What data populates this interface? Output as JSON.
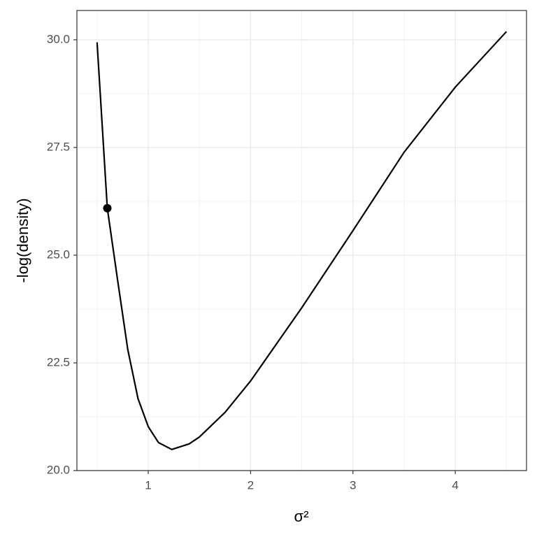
{
  "chart_data": {
    "type": "line",
    "x_label": "σ²",
    "y_label": "-log(density)",
    "xlim": [
      0.303,
      4.696
    ],
    "ylim": [
      20,
      30.68
    ],
    "xticks": [
      1,
      2,
      3,
      4
    ],
    "yticks": [
      {
        "value": 20,
        "label": "20.0"
      },
      {
        "value": 22.5,
        "label": "22.5"
      },
      {
        "value": 25,
        "label": "25.0"
      },
      {
        "value": 27.5,
        "label": "27.5"
      },
      {
        "value": 30,
        "label": "30.0"
      }
    ],
    "grid": true,
    "series": [
      {
        "color": "#000000",
        "marker": false,
        "x": [
          0.5,
          0.6,
          0.7,
          0.8,
          0.9,
          1.0,
          1.1,
          1.23,
          1.4,
          1.5,
          1.75,
          2.0,
          2.5,
          3.0,
          3.5,
          4.0,
          4.5
        ],
        "values": [
          29.94,
          26.09,
          24.43,
          22.81,
          21.67,
          21.02,
          20.65,
          20.49,
          20.62,
          20.78,
          21.35,
          22.08,
          23.78,
          25.57,
          27.39,
          28.9,
          30.19
        ]
      },
      {
        "color": "#000000",
        "marker": true,
        "x": [
          0.6
        ],
        "values": [
          26.09
        ]
      }
    ]
  }
}
